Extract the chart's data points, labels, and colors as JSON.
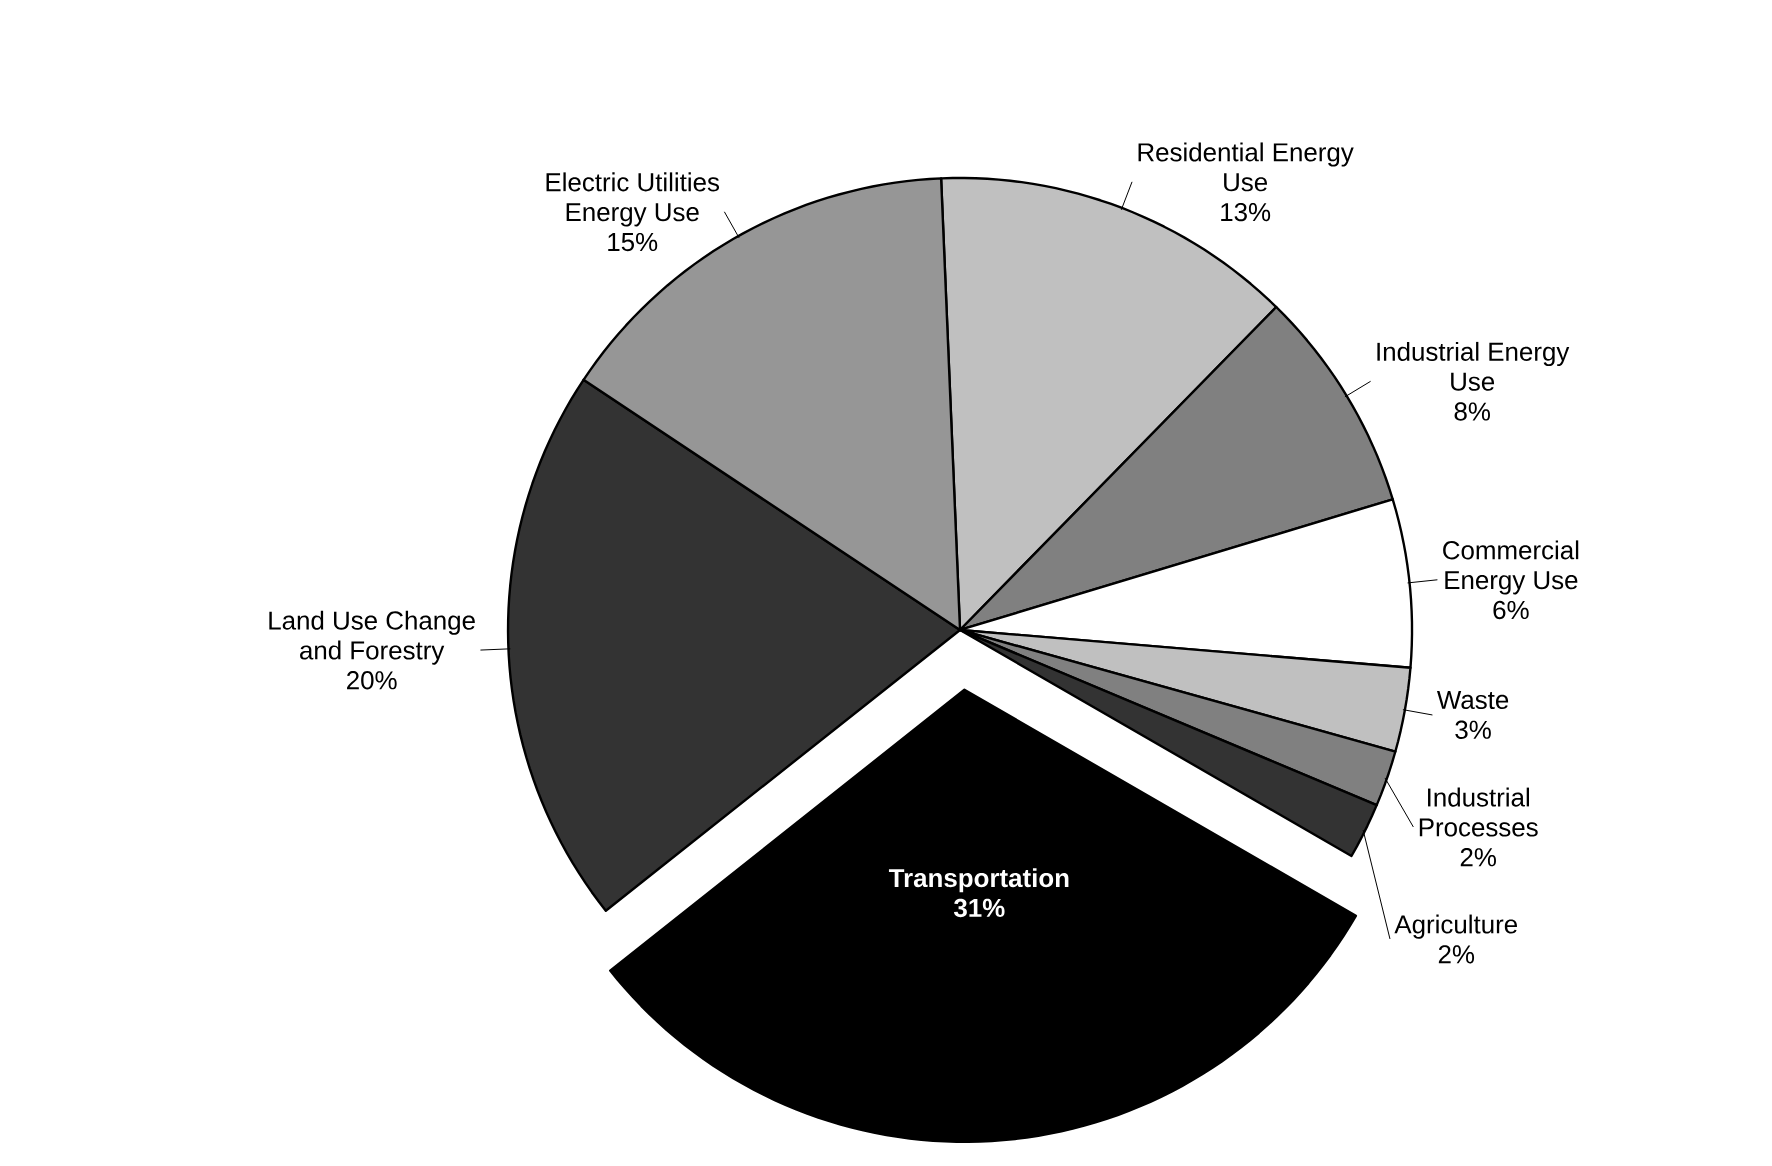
{
  "chart_data": {
    "type": "pie",
    "categories": [
      "Residential Energy Use",
      "Industrial Energy Use",
      "Commercial Energy Use",
      "Waste",
      "Industrial Processes",
      "Agriculture",
      "Transportation",
      "Land Use Change and Forestry",
      "Electric Utilities Energy Use"
    ],
    "values": [
      13,
      8,
      6,
      3,
      2,
      2,
      31,
      20,
      15
    ],
    "value_labels": [
      "13%",
      "8%",
      "6%",
      "3%",
      "2%",
      "2%",
      "31%",
      "20%",
      "15%"
    ],
    "colors": [
      "#c0c0c0",
      "#808080",
      "#ffffff",
      "#c0c0c0",
      "#808080",
      "#333333",
      "#000000",
      "#333333",
      "#969696"
    ]
  }
}
